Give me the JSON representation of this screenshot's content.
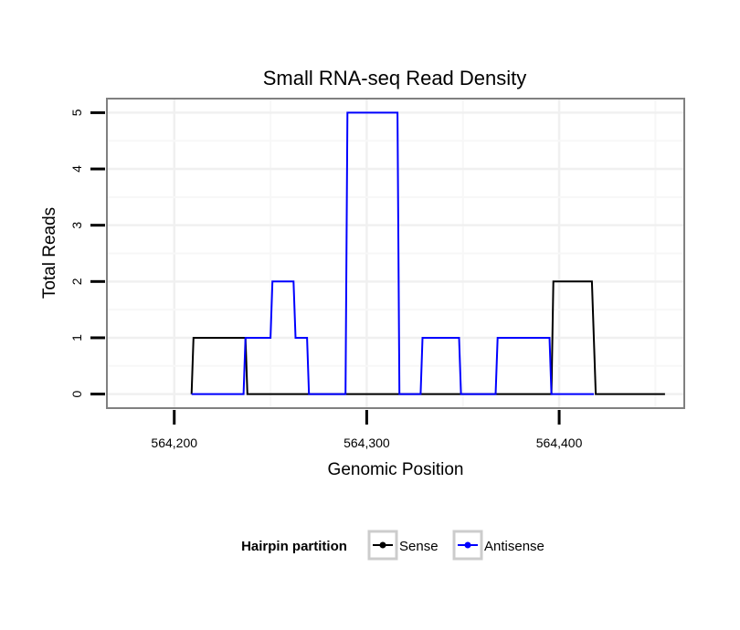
{
  "chart_data": {
    "type": "line",
    "title": "Small RNA-seq Read Density",
    "xlabel": "Genomic Position",
    "ylabel": "Total Reads",
    "xlim": [
      564165,
      564465
    ],
    "ylim": [
      -0.25,
      5.25
    ],
    "x_ticks": [
      564200,
      564300,
      564400
    ],
    "x_tick_labels": [
      "564,200",
      "564,300",
      "564,400"
    ],
    "y_ticks": [
      0,
      1,
      2,
      3,
      4,
      5
    ],
    "y_tick_labels": [
      "0",
      "1",
      "2",
      "3",
      "4",
      "5"
    ],
    "grid": true,
    "legend": {
      "title": "Hairpin partition",
      "position": "bottom",
      "entries": [
        "Sense",
        "Antisense"
      ]
    },
    "series": [
      {
        "name": "Sense",
        "color": "#000000",
        "x": [
          564209,
          564210,
          564237,
          564238,
          564396,
          564397,
          564417,
          564419,
          564455
        ],
        "y": [
          0,
          1,
          1,
          0,
          0,
          2,
          2,
          0,
          0
        ]
      },
      {
        "name": "Antisense",
        "color": "#0000ff",
        "x": [
          564209,
          564236,
          564237,
          564250,
          564251,
          564262,
          564263,
          564269,
          564270,
          564289,
          564290,
          564316,
          564317,
          564328,
          564329,
          564348,
          564349,
          564367,
          564368,
          564395,
          564396,
          564418
        ],
        "y": [
          0,
          0,
          1,
          1,
          2,
          2,
          1,
          1,
          0,
          0,
          5,
          5,
          0,
          0,
          1,
          1,
          0,
          0,
          1,
          1,
          0,
          0
        ]
      }
    ]
  }
}
